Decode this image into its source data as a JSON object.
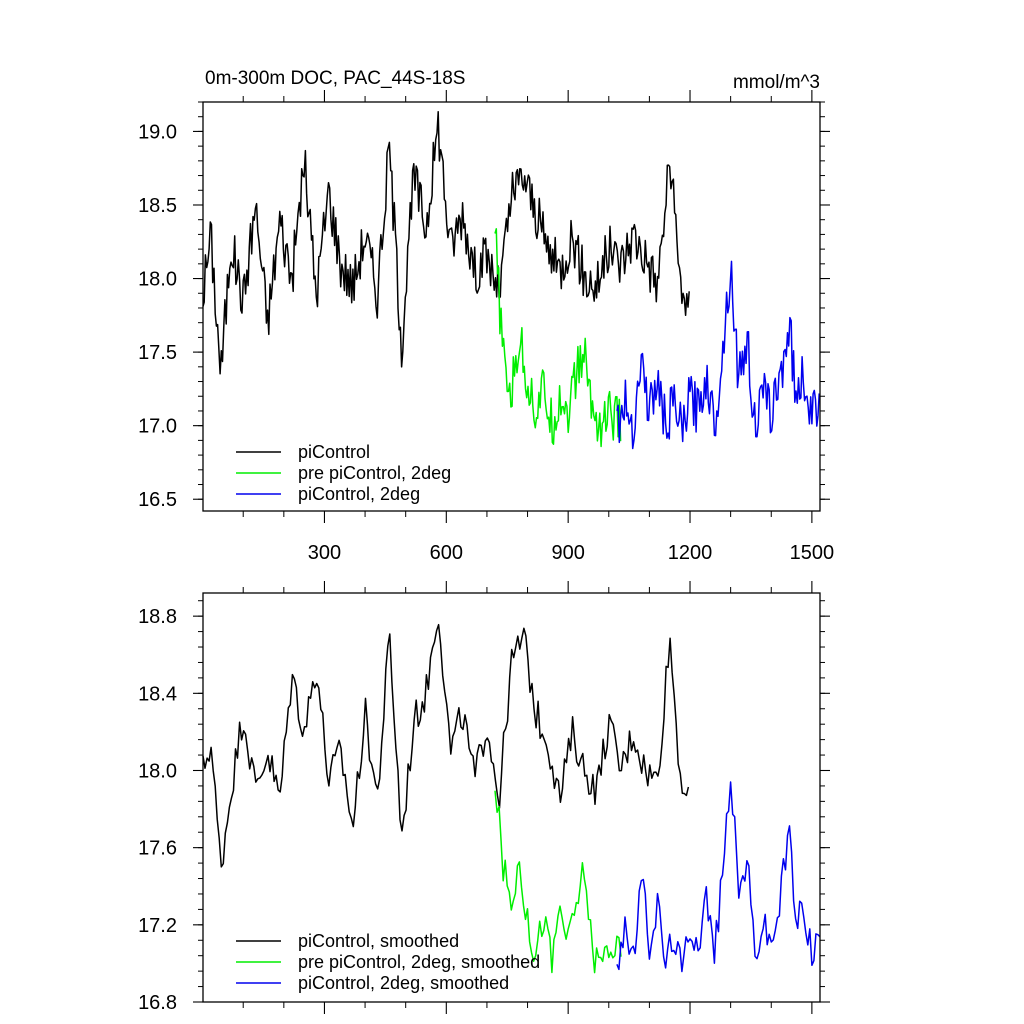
{
  "chart_data": [
    {
      "type": "line",
      "title": "0m-300m DOC, PAC_44S-18S",
      "units": "mmol/m^3",
      "xlim": [
        1,
        1520
      ],
      "ylim": [
        16.42,
        19.2
      ],
      "x_ticks": [
        300,
        600,
        900,
        1200,
        1500
      ],
      "y_ticks": [
        16.5,
        17.0,
        17.5,
        18.0,
        18.5,
        19.0
      ],
      "grid": false,
      "legend_position": "bottom-left",
      "series": [
        {
          "name": "piControl",
          "color": "#000000",
          "x_range": [
            1,
            1200
          ],
          "points": [
            [
              1,
              17.9
            ],
            [
              20,
              18.3
            ],
            [
              45,
              17.35
            ],
            [
              70,
              18.25
            ],
            [
              100,
              17.85
            ],
            [
              130,
              18.5
            ],
            [
              160,
              17.7
            ],
            [
              190,
              18.4
            ],
            [
              220,
              18.0
            ],
            [
              250,
              18.8
            ],
            [
              280,
              17.9
            ],
            [
              310,
              18.6
            ],
            [
              340,
              18.1
            ],
            [
              370,
              17.95
            ],
            [
              400,
              18.3
            ],
            [
              430,
              17.9
            ],
            [
              460,
              18.9
            ],
            [
              490,
              17.55
            ],
            [
              520,
              18.7
            ],
            [
              550,
              18.35
            ],
            [
              580,
              19.05
            ],
            [
              610,
              18.2
            ],
            [
              640,
              18.45
            ],
            [
              670,
              18.05
            ],
            [
              700,
              18.15
            ],
            [
              730,
              17.9
            ],
            [
              760,
              18.55
            ],
            [
              790,
              18.7
            ],
            [
              820,
              18.45
            ],
            [
              850,
              18.2
            ],
            [
              880,
              18.05
            ],
            [
              910,
              18.3
            ],
            [
              940,
              18.0
            ],
            [
              970,
              17.95
            ],
            [
              1000,
              18.2
            ],
            [
              1030,
              18.1
            ],
            [
              1060,
              18.3
            ],
            [
              1090,
              18.15
            ],
            [
              1120,
              17.95
            ],
            [
              1150,
              18.8
            ],
            [
              1175,
              18.0
            ],
            [
              1200,
              17.75
            ]
          ]
        },
        {
          "name": "pre piControl, 2deg",
          "color": "#00ee00",
          "x_range": [
            720,
            1030
          ],
          "points": [
            [
              720,
              18.3
            ],
            [
              740,
              17.45
            ],
            [
              760,
              17.2
            ],
            [
              780,
              17.6
            ],
            [
              800,
              17.3
            ],
            [
              820,
              17.1
            ],
            [
              840,
              17.25
            ],
            [
              860,
              17.0
            ],
            [
              880,
              17.2
            ],
            [
              900,
              17.1
            ],
            [
              920,
              17.35
            ],
            [
              940,
              17.5
            ],
            [
              960,
              17.1
            ],
            [
              980,
              17.0
            ],
            [
              1000,
              17.1
            ],
            [
              1030,
              17.0
            ]
          ]
        },
        {
          "name": "piControl, 2deg",
          "color": "#0000ee",
          "x_range": [
            1020,
            1520
          ],
          "points": [
            [
              1020,
              17.0
            ],
            [
              1040,
              17.15
            ],
            [
              1060,
              17.0
            ],
            [
              1080,
              17.45
            ],
            [
              1100,
              17.1
            ],
            [
              1120,
              17.3
            ],
            [
              1140,
              17.0
            ],
            [
              1160,
              17.15
            ],
            [
              1180,
              16.95
            ],
            [
              1200,
              17.2
            ],
            [
              1220,
              17.1
            ],
            [
              1240,
              17.35
            ],
            [
              1260,
              17.0
            ],
            [
              1280,
              17.5
            ],
            [
              1300,
              18.1
            ],
            [
              1320,
              17.3
            ],
            [
              1340,
              17.6
            ],
            [
              1360,
              17.0
            ],
            [
              1380,
              17.2
            ],
            [
              1400,
              17.1
            ],
            [
              1420,
              17.3
            ],
            [
              1445,
              17.7
            ],
            [
              1460,
              17.2
            ],
            [
              1480,
              17.35
            ],
            [
              1500,
              17.05
            ],
            [
              1520,
              17.2
            ]
          ]
        }
      ]
    },
    {
      "type": "line",
      "title": "",
      "units": "",
      "xlim": [
        1,
        1520
      ],
      "ylim": [
        16.8,
        18.92
      ],
      "x_ticks": [
        300,
        600,
        900,
        1200,
        1500
      ],
      "y_ticks": [
        16.8,
        17.2,
        17.6,
        18.0,
        18.4,
        18.8
      ],
      "grid": false,
      "legend_position": "bottom-left",
      "series": [
        {
          "name": "piControl, smoothed",
          "color": "#000000",
          "x_range": [
            1,
            1200
          ],
          "points": [
            [
              1,
              18.0
            ],
            [
              20,
              18.15
            ],
            [
              45,
              17.5
            ],
            [
              70,
              17.9
            ],
            [
              100,
              18.3
            ],
            [
              130,
              17.9
            ],
            [
              160,
              18.1
            ],
            [
              190,
              17.85
            ],
            [
              220,
              18.5
            ],
            [
              250,
              18.2
            ],
            [
              280,
              18.55
            ],
            [
              310,
              17.95
            ],
            [
              340,
              18.1
            ],
            [
              370,
              17.7
            ],
            [
              400,
              18.3
            ],
            [
              430,
              17.85
            ],
            [
              460,
              18.7
            ],
            [
              490,
              17.65
            ],
            [
              520,
              18.25
            ],
            [
              550,
              18.4
            ],
            [
              580,
              18.85
            ],
            [
              610,
              18.1
            ],
            [
              640,
              18.3
            ],
            [
              670,
              17.95
            ],
            [
              700,
              18.25
            ],
            [
              730,
              17.85
            ],
            [
              760,
              18.55
            ],
            [
              790,
              18.7
            ],
            [
              820,
              18.3
            ],
            [
              850,
              18.15
            ],
            [
              880,
              17.85
            ],
            [
              910,
              18.2
            ],
            [
              940,
              18.0
            ],
            [
              970,
              17.9
            ],
            [
              1000,
              18.25
            ],
            [
              1030,
              18.0
            ],
            [
              1060,
              18.2
            ],
            [
              1090,
              18.0
            ],
            [
              1120,
              17.95
            ],
            [
              1150,
              18.7
            ],
            [
              1175,
              18.0
            ],
            [
              1200,
              17.8
            ]
          ]
        },
        {
          "name": "pre piControl, 2deg, smoothed",
          "color": "#00ee00",
          "x_range": [
            720,
            1030
          ],
          "points": [
            [
              720,
              17.95
            ],
            [
              740,
              17.5
            ],
            [
              760,
              17.3
            ],
            [
              780,
              17.55
            ],
            [
              800,
              17.2
            ],
            [
              820,
              17.05
            ],
            [
              840,
              17.25
            ],
            [
              860,
              17.0
            ],
            [
              880,
              17.3
            ],
            [
              900,
              17.1
            ],
            [
              920,
              17.3
            ],
            [
              940,
              17.5
            ],
            [
              960,
              17.05
            ],
            [
              980,
              17.0
            ],
            [
              1000,
              17.1
            ],
            [
              1030,
              17.05
            ]
          ]
        },
        {
          "name": "piControl, 2deg, smoothed",
          "color": "#0000ee",
          "x_range": [
            1020,
            1520
          ],
          "points": [
            [
              1020,
              17.0
            ],
            [
              1040,
              17.2
            ],
            [
              1060,
              17.0
            ],
            [
              1080,
              17.45
            ],
            [
              1100,
              17.1
            ],
            [
              1120,
              17.3
            ],
            [
              1140,
              17.0
            ],
            [
              1160,
              17.15
            ],
            [
              1180,
              16.95
            ],
            [
              1200,
              17.2
            ],
            [
              1220,
              17.1
            ],
            [
              1240,
              17.35
            ],
            [
              1260,
              17.05
            ],
            [
              1280,
              17.45
            ],
            [
              1300,
              18.0
            ],
            [
              1320,
              17.35
            ],
            [
              1340,
              17.55
            ],
            [
              1360,
              17.05
            ],
            [
              1380,
              17.2
            ],
            [
              1400,
              17.1
            ],
            [
              1420,
              17.3
            ],
            [
              1445,
              17.7
            ],
            [
              1460,
              17.2
            ],
            [
              1480,
              17.3
            ],
            [
              1500,
              17.05
            ],
            [
              1520,
              17.15
            ]
          ]
        }
      ]
    }
  ]
}
